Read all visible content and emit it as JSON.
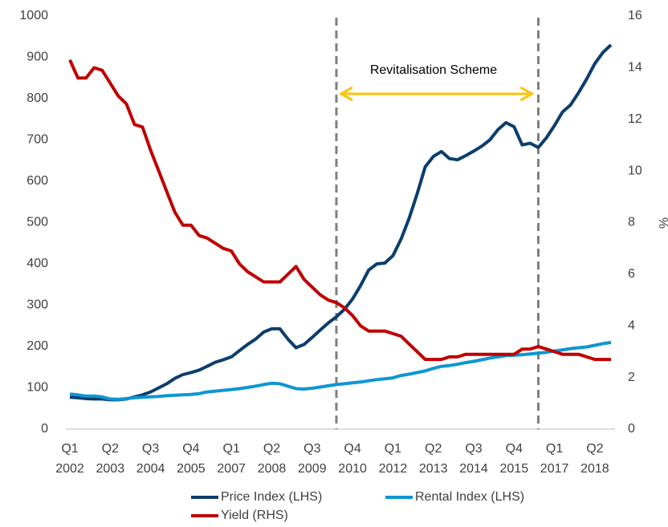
{
  "chart_data": {
    "type": "line",
    "categories": [
      [
        "Q1",
        "2002"
      ],
      null,
      null,
      null,
      null,
      [
        "Q2",
        "2003"
      ],
      null,
      null,
      null,
      null,
      [
        "Q3",
        "2004"
      ],
      null,
      null,
      null,
      null,
      [
        "Q4",
        "2005"
      ],
      null,
      null,
      null,
      null,
      [
        "Q1",
        "2007"
      ],
      null,
      null,
      null,
      null,
      [
        "Q2",
        "2008"
      ],
      null,
      null,
      null,
      null,
      [
        "Q3",
        "2009"
      ],
      null,
      null,
      null,
      null,
      [
        "Q4",
        "2010"
      ],
      null,
      null,
      null,
      null,
      [
        "Q1",
        "2012"
      ],
      null,
      null,
      null,
      null,
      [
        "Q2",
        "2013"
      ],
      null,
      null,
      null,
      null,
      [
        "Q3",
        "2014"
      ],
      null,
      null,
      null,
      null,
      [
        "Q4",
        "2015"
      ],
      null,
      null,
      null,
      null,
      [
        "Q1",
        "2017"
      ],
      null,
      null,
      null,
      null,
      [
        "Q2",
        "2018"
      ],
      null,
      null
    ],
    "series": [
      {
        "name": "Price Index (LHS)",
        "color": "#0c3e6d",
        "axis": "y",
        "values": [
          77,
          76,
          74,
          73,
          73,
          71,
          71,
          73,
          78,
          83,
          90,
          100,
          110,
          123,
          132,
          137,
          143,
          152,
          162,
          168,
          175,
          190,
          205,
          218,
          235,
          243,
          243,
          218,
          197,
          205,
          222,
          240,
          257,
          272,
          290,
          315,
          348,
          385,
          400,
          402,
          420,
          460,
          510,
          570,
          635,
          660,
          672,
          655,
          652,
          662,
          673,
          685,
          700,
          725,
          742,
          732,
          688,
          692,
          682,
          705,
          735,
          768,
          785,
          815,
          848,
          885,
          912,
          930
        ]
      },
      {
        "name": "Rental Index (LHS)",
        "color": "#0e96d2",
        "axis": "y",
        "values": [
          85,
          83,
          80,
          80,
          78,
          73,
          72,
          74,
          76,
          77,
          78,
          79,
          81,
          82,
          83,
          84,
          86,
          90,
          92,
          94,
          96,
          98,
          101,
          104,
          108,
          111,
          110,
          104,
          98,
          97,
          99,
          102,
          105,
          108,
          110,
          112,
          114,
          117,
          120,
          122,
          124,
          130,
          133,
          137,
          141,
          147,
          152,
          154,
          157,
          161,
          164,
          168,
          172,
          175,
          178,
          179,
          180,
          182,
          184,
          186,
          189,
          192,
          195,
          197,
          199,
          203,
          207,
          210
        ]
      },
      {
        "name": "Yield (RHS)",
        "color": "#c00000",
        "axis": "y2",
        "values": [
          14.3,
          13.6,
          13.6,
          14.0,
          13.9,
          13.4,
          12.9,
          12.6,
          11.8,
          11.7,
          10.8,
          10.0,
          9.2,
          8.4,
          7.9,
          7.9,
          7.5,
          7.4,
          7.2,
          7.0,
          6.9,
          6.4,
          6.1,
          5.9,
          5.7,
          5.7,
          5.7,
          6.0,
          6.3,
          5.8,
          5.5,
          5.2,
          5.0,
          4.9,
          4.7,
          4.4,
          4.0,
          3.8,
          3.8,
          3.8,
          3.7,
          3.6,
          3.3,
          3.0,
          2.7,
          2.7,
          2.7,
          2.8,
          2.8,
          2.9,
          2.9,
          2.9,
          2.9,
          2.9,
          2.9,
          2.9,
          3.1,
          3.1,
          3.2,
          3.1,
          3.0,
          2.9,
          2.9,
          2.9,
          2.8,
          2.7,
          2.7,
          2.7
        ]
      }
    ],
    "ylim": [
      0,
      1000
    ],
    "yticks": [
      0,
      100,
      200,
      300,
      400,
      500,
      600,
      700,
      800,
      900,
      1000
    ],
    "y2lim": [
      0,
      16
    ],
    "y2ticks": [
      0,
      2,
      4,
      6,
      8,
      10,
      12,
      14,
      16
    ],
    "y2label": "%",
    "event_lines": [
      33,
      58
    ],
    "annotation": "Revitalisation Scheme",
    "grid": false
  }
}
